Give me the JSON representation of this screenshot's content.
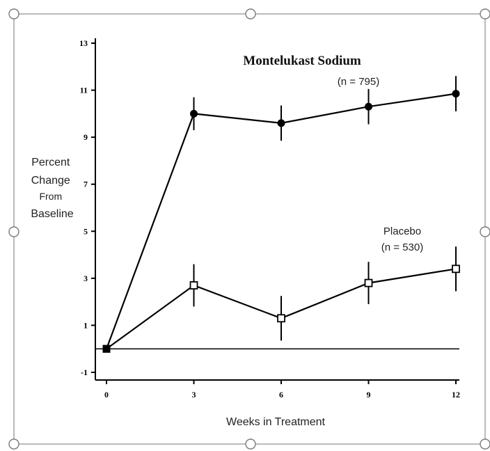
{
  "chart_data": {
    "type": "line",
    "title": "",
    "xlabel": "Weeks in Treatment",
    "ylabel": [
      "Percent",
      "Change",
      "From",
      "Baseline"
    ],
    "x": [
      0,
      3,
      6,
      9,
      12
    ],
    "xlim": [
      0,
      12
    ],
    "ylim": [
      -1,
      13
    ],
    "yticks": [
      -1,
      1,
      3,
      5,
      7,
      9,
      11,
      13
    ],
    "xticks": [
      0,
      3,
      6,
      9,
      12
    ],
    "grid": false,
    "series": [
      {
        "name": "Montelukast Sodium",
        "n_label": "(n = 795)",
        "marker": "filled-circle",
        "values": [
          0,
          10.0,
          9.6,
          10.3,
          10.85
        ],
        "err": [
          0,
          0.7,
          0.75,
          0.75,
          0.75
        ]
      },
      {
        "name": "Placebo",
        "n_label": "(n = 530)",
        "marker": "open-square",
        "values": [
          0,
          2.7,
          1.3,
          2.8,
          3.4
        ],
        "err": [
          0,
          0.9,
          0.95,
          0.9,
          0.95
        ]
      }
    ],
    "reference_line": 0
  },
  "colors": {
    "line": "#000000",
    "frame": "#8c8c8c",
    "handle": "#7a7a7a"
  }
}
